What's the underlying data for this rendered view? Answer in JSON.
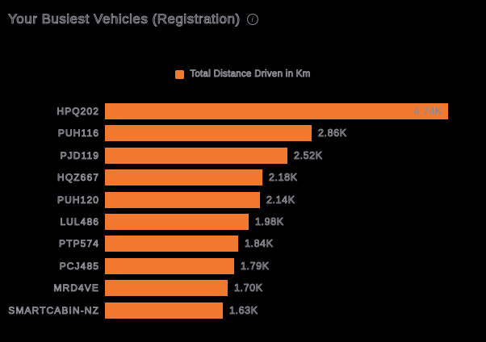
{
  "header": {
    "title": "Your Busiest Vehicles (Registration)",
    "info_glyph": "i"
  },
  "legend": {
    "items": [
      {
        "label": "Total Distance Driven in Km",
        "color": "#f0792f"
      }
    ]
  },
  "chart_data": {
    "type": "bar",
    "orientation": "horizontal",
    "title": "Your Busiest Vehicles (Registration)",
    "series_name": "Total Distance Driven in Km",
    "categories": [
      "HPQ202",
      "PUH116",
      "PJD119",
      "HQZ667",
      "PUH120",
      "LUL486",
      "PTP574",
      "PCJ485",
      "MRD4VE",
      "SMARTCABIN-NZ"
    ],
    "values": [
      4740,
      2860,
      2520,
      2180,
      2140,
      1980,
      1840,
      1790,
      1700,
      1630
    ],
    "value_labels": [
      "4.74K",
      "2.86K",
      "2.52K",
      "2.18K",
      "2.14K",
      "1.98K",
      "1.84K",
      "1.79K",
      "1.70K",
      "1.63K"
    ],
    "xlabel": "",
    "ylabel": "",
    "xlim": [
      0,
      4740
    ],
    "grid": false,
    "legend_position": "top-center",
    "bar_color": "#f0792f",
    "value_label_color": "#8f8f96"
  },
  "colors": {
    "background": "#000000",
    "bar": "#f0792f",
    "text_core": "#26262f",
    "text_halo": "#b7b7c1"
  }
}
